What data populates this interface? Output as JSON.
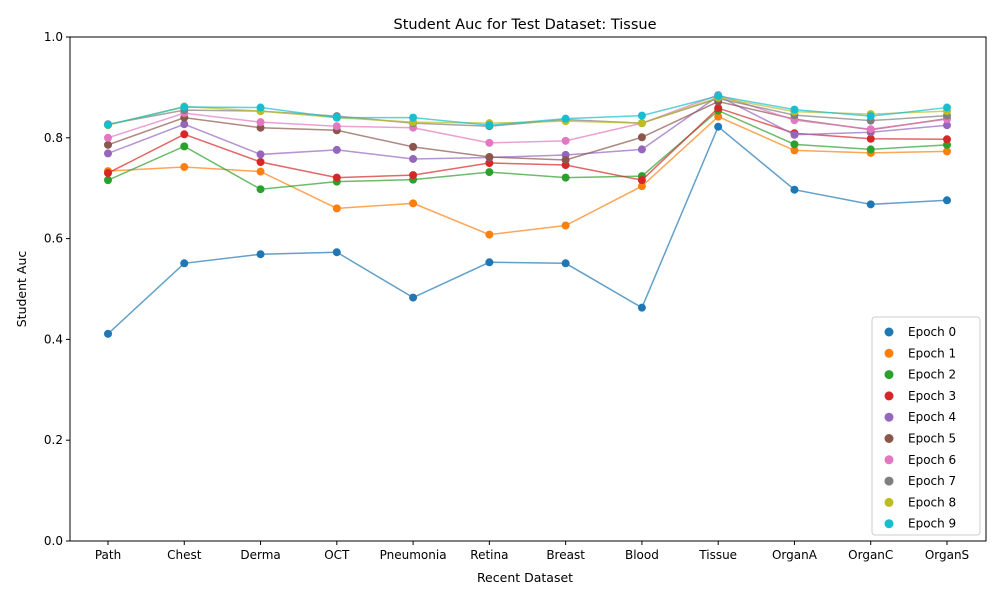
{
  "chart_data": {
    "type": "line",
    "title": "Student Auc for Test Dataset: Tissue",
    "xlabel": "Recent Dataset",
    "ylabel": "Student Auc",
    "ylim": [
      0.0,
      1.0
    ],
    "yticks": [
      "0.0",
      "0.2",
      "0.4",
      "0.6",
      "0.8",
      "1.0"
    ],
    "grid": false,
    "legend_position": "lower-right",
    "categories": [
      "Path",
      "Chest",
      "Derma",
      "OCT",
      "Pneumonia",
      "Retina",
      "Breast",
      "Blood",
      "Tissue",
      "OrganA",
      "OrganC",
      "OrganS"
    ],
    "series": [
      {
        "name": "Epoch 0",
        "color": "#1f77b4",
        "values": [
          0.411,
          0.551,
          0.569,
          0.573,
          0.483,
          0.553,
          0.551,
          0.463,
          0.822,
          0.697,
          0.668,
          0.676
        ]
      },
      {
        "name": "Epoch 1",
        "color": "#ff7f0e",
        "values": [
          0.734,
          0.742,
          0.733,
          0.66,
          0.67,
          0.608,
          0.626,
          0.704,
          0.842,
          0.775,
          0.77,
          0.773
        ]
      },
      {
        "name": "Epoch 2",
        "color": "#2ca02c",
        "values": [
          0.716,
          0.783,
          0.698,
          0.713,
          0.717,
          0.732,
          0.721,
          0.724,
          0.854,
          0.787,
          0.777,
          0.786
        ]
      },
      {
        "name": "Epoch 3",
        "color": "#d62728",
        "values": [
          0.73,
          0.807,
          0.752,
          0.721,
          0.726,
          0.75,
          0.746,
          0.716,
          0.859,
          0.809,
          0.798,
          0.797
        ]
      },
      {
        "name": "Epoch 4",
        "color": "#9467bd",
        "values": [
          0.769,
          0.827,
          0.767,
          0.776,
          0.758,
          0.761,
          0.766,
          0.777,
          0.883,
          0.806,
          0.811,
          0.825
        ]
      },
      {
        "name": "Epoch 5",
        "color": "#8c564b",
        "values": [
          0.786,
          0.84,
          0.82,
          0.815,
          0.782,
          0.762,
          0.756,
          0.801,
          0.872,
          0.837,
          0.816,
          0.838
        ]
      },
      {
        "name": "Epoch 6",
        "color": "#e377c2",
        "values": [
          0.8,
          0.849,
          0.831,
          0.823,
          0.82,
          0.79,
          0.794,
          0.829,
          0.885,
          0.835,
          0.817,
          0.837
        ]
      },
      {
        "name": "Epoch 7",
        "color": "#7f7f7f",
        "values": [
          0.827,
          0.855,
          0.853,
          0.843,
          0.829,
          0.823,
          0.836,
          0.829,
          0.878,
          0.845,
          0.834,
          0.844
        ]
      },
      {
        "name": "Epoch 8",
        "color": "#bcbd22",
        "values": [
          0.825,
          0.862,
          0.853,
          0.84,
          0.831,
          0.829,
          0.833,
          0.829,
          0.88,
          0.852,
          0.847,
          0.853
        ]
      },
      {
        "name": "Epoch 9",
        "color": "#17becf",
        "values": [
          0.826,
          0.861,
          0.86,
          0.84,
          0.84,
          0.825,
          0.838,
          0.844,
          0.883,
          0.856,
          0.843,
          0.86
        ]
      }
    ]
  }
}
